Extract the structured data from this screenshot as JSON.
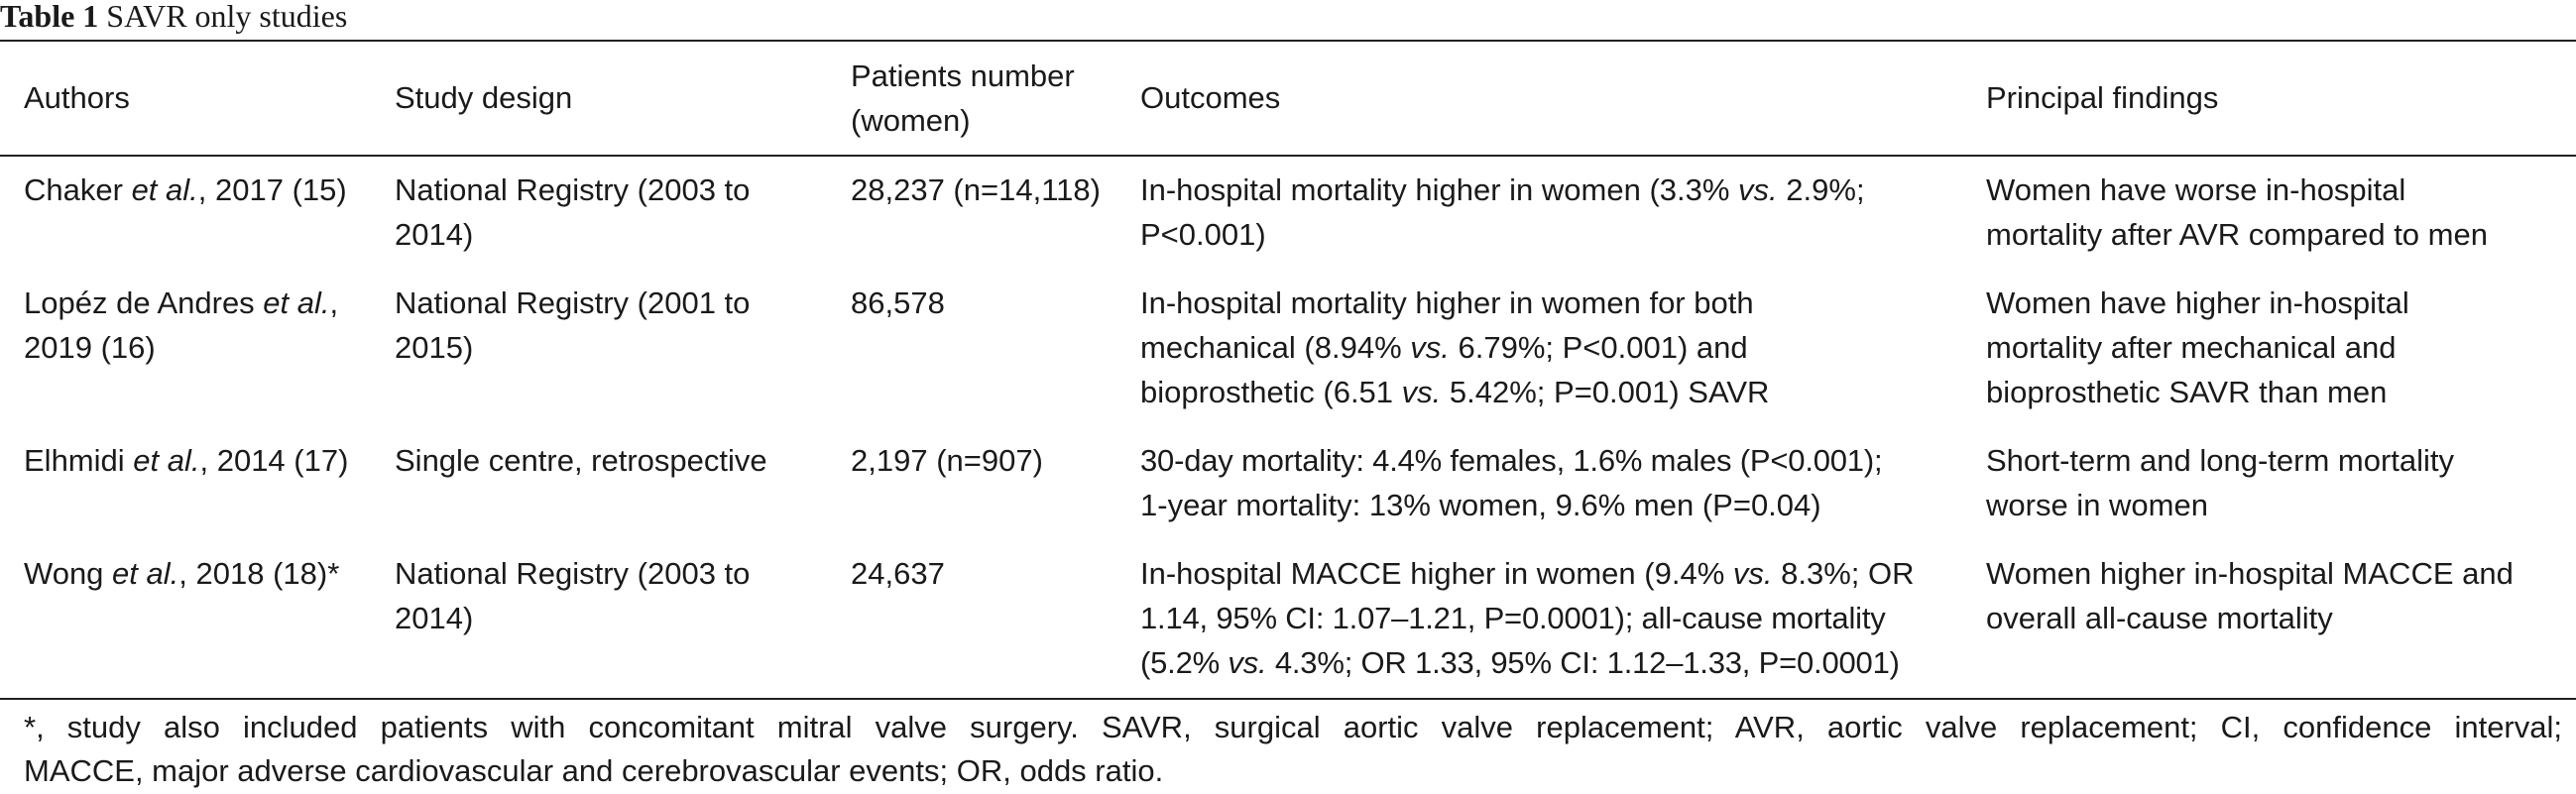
{
  "caption": {
    "label": "Table 1",
    "title": "SAVR only studies"
  },
  "headers": {
    "authors": "Authors",
    "study_design": "Study design",
    "patients_line1": "Patients number",
    "patients_line2": "(women)",
    "outcomes": "Outcomes",
    "findings": "Principal findings"
  },
  "rows": [
    {
      "author_name": "Chaker",
      "author_etal": "et al.",
      "author_suffix": ", 2017 (15)",
      "design_line1": "National Registry (2003 to",
      "design_line2": "2014)",
      "patients": "28,237 (n=14,118)",
      "outcome_l1a": "In-hospital mortality higher in women (3.3% ",
      "outcome_l1_vs": "vs.",
      "outcome_l1b": " 2.9%;",
      "outcome_l2": "P<0.001)",
      "finding_line1": "Women have worse in-hospital",
      "finding_line2": "mortality after AVR compared to men"
    },
    {
      "author_name": "Lopéz de Andres ",
      "author_etal": "et al.",
      "author_suffix": ",",
      "author_line2": "2019 (16)",
      "design_line1": "National Registry (2001 to",
      "design_line2": "2015)",
      "patients": "86,578",
      "outcome_l1": "In-hospital mortality higher in women for both",
      "outcome_l2a": "mechanical (8.94% ",
      "outcome_l2_vs": "vs.",
      "outcome_l2b": " 6.79%; P<0.001) and",
      "outcome_l3a": "bioprosthetic (6.51 ",
      "outcome_l3_vs": "vs.",
      "outcome_l3b": " 5.42%; P=0.001) SAVR",
      "finding_line1": "Women have higher in-hospital",
      "finding_line2": "mortality after mechanical and",
      "finding_line3": "bioprosthetic SAVR than men"
    },
    {
      "author_name": "Elhmidi ",
      "author_etal": "et al.",
      "author_suffix": ", 2014 (17)",
      "design_line1": "Single centre, retrospective",
      "patients": "2,197 (n=907)",
      "outcome_l1": "30-day mortality: 4.4% females, 1.6% males (P<0.001);",
      "outcome_l2": "1-year mortality: 13% women, 9.6% men (P=0.04)",
      "finding_line1": "Short-term and long-term mortality",
      "finding_line2": "worse in women"
    },
    {
      "author_name": "Wong ",
      "author_etal": "et al.",
      "author_suffix": ", 2018 (18)*",
      "design_line1": "National Registry (2003 to",
      "design_line2": "2014)",
      "patients": "24,637",
      "outcome_l1a": "In-hospital MACCE higher in women (9.4% ",
      "outcome_l1_vs": "vs.",
      "outcome_l1b": " 8.3%; OR",
      "outcome_l2": "1.14, 95% CI: 1.07–1.21, P=0.0001); all-cause mortality",
      "outcome_l3a": "(5.2% ",
      "outcome_l3_vs": "vs.",
      "outcome_l3b": " 4.3%; OR 1.33, 95% CI: 1.12–1.33, P=0.0001)",
      "finding_line1": "Women higher in-hospital MACCE and",
      "finding_line2": "overall all-cause mortality"
    }
  ],
  "footnote": {
    "line1": "*, study also included patients with concomitant mitral valve surgery. SAVR, surgical aortic valve replacement; AVR, aortic valve replacement; CI, confidence interval;",
    "line2": "MACCE, major adverse cardiovascular and cerebrovascular events; OR, odds ratio."
  }
}
